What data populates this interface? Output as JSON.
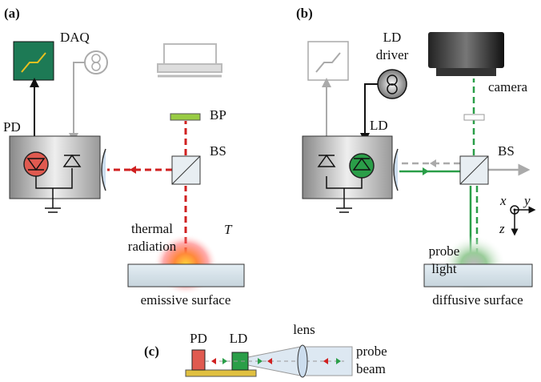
{
  "panel_a": {
    "label": "(a)",
    "daq": "DAQ",
    "pd": "PD",
    "bp": "BP",
    "bs": "BS",
    "thermal_radiation": [
      "thermal",
      "radiation"
    ],
    "temperature": "T",
    "surface": "emissive surface"
  },
  "panel_b": {
    "label": "(b)",
    "ld_driver": [
      "LD",
      "driver"
    ],
    "camera": "camera",
    "ld": "LD",
    "bs": "BS",
    "axes": {
      "x": "x",
      "y": "y",
      "z": "z"
    },
    "probe_light": [
      "probe",
      "light"
    ],
    "surface": "diffusive surface"
  },
  "panel_c": {
    "label": "(c)",
    "pd": "PD",
    "ld": "LD",
    "lens": "lens",
    "probe_beam": [
      "probe",
      "beam"
    ]
  }
}
